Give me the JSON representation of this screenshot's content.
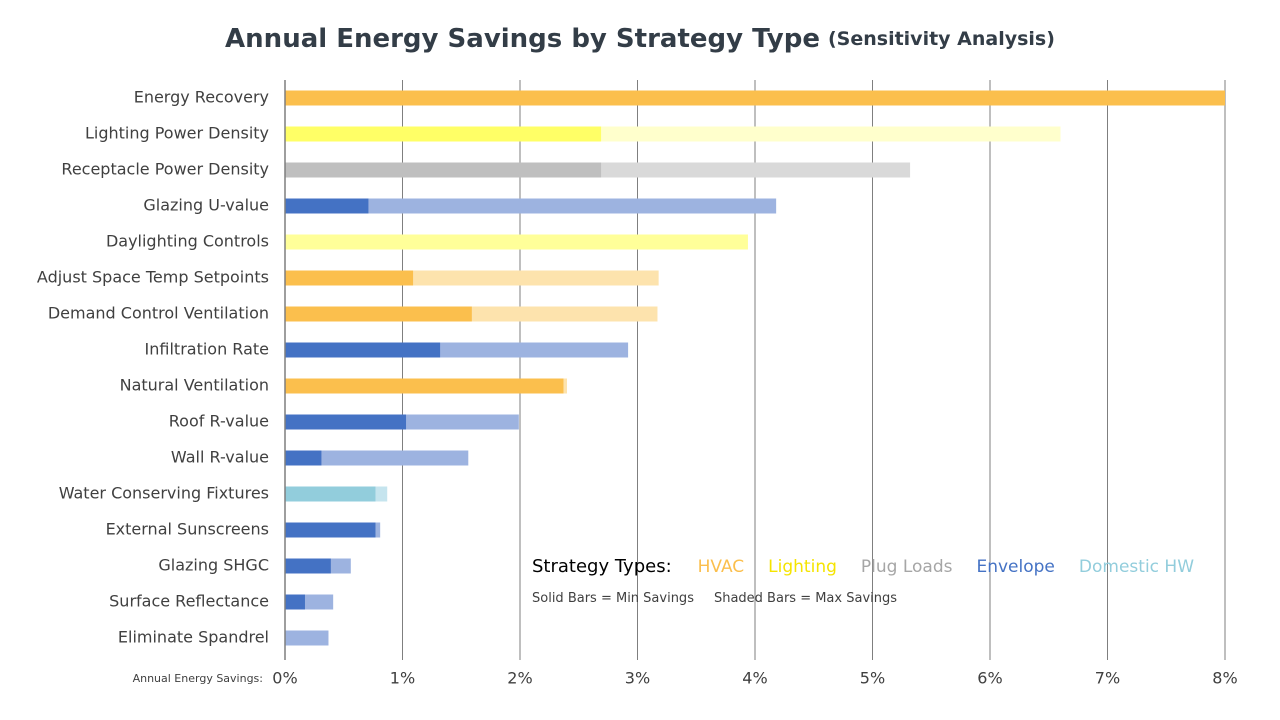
{
  "chart_data": {
    "type": "bar",
    "orientation": "horizontal",
    "title": "Annual Energy Savings by Strategy Type",
    "subtitle": "(Sensitivity Analysis)",
    "x_label": "Annual Energy Savings:",
    "categories": [
      "Energy Recovery",
      "Lighting Power Density",
      "Receptacle Power Density",
      "Glazing U-value",
      "Daylighting Controls",
      "Adjust Space Temp Setpoints",
      "Demand Control Ventilation",
      "Infiltration Rate",
      "Natural Ventilation",
      "Roof R-value",
      "Wall R-value",
      "Water Conserving Fixtures",
      "External Sunscreens",
      "Glazing SHGC",
      "Surface Reflectance",
      "Eliminate Spandrel"
    ],
    "series": [
      {
        "values": [
          8,
          6.6,
          5.32,
          4.18,
          3.94,
          3.18,
          3.17,
          2.92,
          2.4,
          1.99,
          1.56,
          0.87,
          0.81,
          0.56,
          0.41,
          0.37
        ],
        "colors": [
          "#fde3ad",
          "#ffffcc",
          "#d9d9d9",
          "#9db3e0",
          "#ffff99",
          "#fde3ad",
          "#fde3ad",
          "#9db3e0",
          "#fde3ad",
          "#9db3e0",
          "#9db3e0",
          "#c5e4ee",
          "#9db3e0",
          "#9db3e0",
          "#9db3e0",
          "#9db3e0"
        ]
      },
      {
        "values": [
          8,
          2.69,
          2.69,
          0.71,
          0,
          1.09,
          1.59,
          1.32,
          2.37,
          1.03,
          0.31,
          0.77,
          0.77,
          0.39,
          0.17,
          0
        ],
        "colors": [
          "#fbbf4d",
          "#ffff66",
          "#bfbfbf",
          "#4472c4",
          "#ffff99",
          "#fbbf4d",
          "#fbbf4d",
          "#4472c4",
          "#fbbf4d",
          "#4472c4",
          "#4472c4",
          "#92cddc",
          "#4472c4",
          "#4472c4",
          "#4472c4",
          "#4472c4"
        ]
      }
    ],
    "xlim": [
      0,
      8
    ],
    "xticks": [
      {
        "value": 0,
        "label": "0%"
      },
      {
        "value": 1,
        "label": "1%"
      },
      {
        "value": 2,
        "label": "2%"
      },
      {
        "value": 3,
        "label": "3%"
      },
      {
        "value": 4,
        "label": "4%"
      },
      {
        "value": 5,
        "label": "5%"
      },
      {
        "value": 6,
        "label": "6%"
      },
      {
        "value": 7,
        "label": "7%"
      },
      {
        "value": 8,
        "label": "8%"
      }
    ],
    "grid": true,
    "legend": {
      "title": "Strategy Types:",
      "items": [
        {
          "name": "HVAC",
          "color": "#fbbf4d"
        },
        {
          "name": "Lighting",
          "color": "#f5e400"
        },
        {
          "name": "Plug Loads",
          "color": "#a6a6a6"
        },
        {
          "name": "Envelope",
          "color": "#4472c4"
        },
        {
          "name": "Domestic HW",
          "color": "#92cddc"
        }
      ],
      "notes": [
        "Solid Bars = Min Savings",
        "Shaded Bars = Max Savings"
      ]
    }
  }
}
